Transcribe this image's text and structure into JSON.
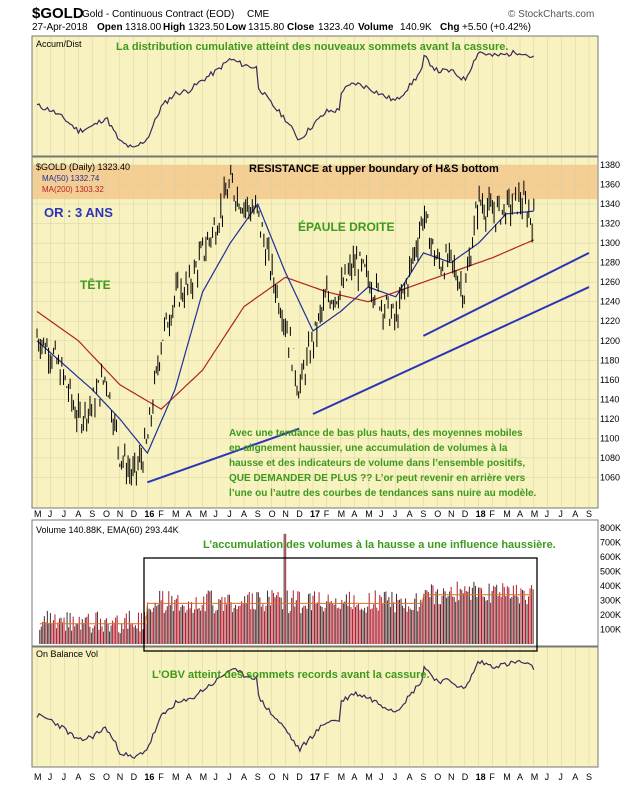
{
  "header": {
    "symbol": "$GOLD",
    "description": "Gold - Continuous Contract (EOD)",
    "exchange": "CME",
    "brand": "© StockCharts.com",
    "date": "27-Apr-2018",
    "open_label": "Open",
    "open": "1318.00",
    "high_label": "High",
    "high": "1323.50",
    "low_label": "Low",
    "low": "1315.80",
    "close_label": "Close",
    "close": "1323.40",
    "volume_label": "Volume",
    "volume": "140.9K",
    "chg_label": "Chg",
    "chg": "+5.50 (+0.42%)"
  },
  "colors": {
    "panel_bg": "#f8f2c0",
    "price": "#000000",
    "ma50": "#1f2f9c",
    "ma200": "#b02424",
    "trendline": "#2c35b8",
    "resistance": "#f4c88c",
    "annotation_green": "#3c9a1c",
    "annotation_blue": "#2c35b8",
    "volume_bar": "#b01c2a",
    "volume_bar_dark": "#4a2a2a"
  },
  "panels": {
    "accum_legend": "Accum/Dist",
    "accum_note": "La distribution cumulative atteint des nouveaux sommets avant la cassure.",
    "price_legend": "$GOLD (Daily) 1323.40",
    "ma50_legend": "MA(50) 1332.74",
    "ma200_legend": "MA(200) 1303.32",
    "resistance_note": "RESISTANCE at upper boundary of H&S bottom",
    "title_note": "OR : 3 ANS",
    "head_note": "TÊTE",
    "shoulder_note": "ÉPAULE DROITE",
    "comment_lines": [
      "Avec une tendance de bas plus hauts, des moyennes mobiles",
      "en alignement haussier, une accumulation de volumes à la",
      "hausse et des indicateurs de volume dans l’ensemble positifs,",
      "QUE DEMANDER DE PLUS ?? L’or peut revenir en arrière vers",
      "l’une ou l’autre des courbes de tendances sans nuire au modèle."
    ],
    "volume_legend": "Volume 140.88K, EMA(60) 293.44K",
    "volume_note": "L’accumulation des volumes à la hausse a une influence haussière.",
    "obv_legend": "On Balance Vol",
    "obv_note": "L’OBV atteint des sommets records avant la cassure."
  },
  "chart_data": {
    "type": "line",
    "title": "$GOLD Gold - Continuous Contract (EOD) CME",
    "xlabel": "",
    "ylabel": "",
    "x_months": [
      "M",
      "J",
      "J",
      "A",
      "S",
      "O",
      "N",
      "D",
      "16",
      "F",
      "M",
      "A",
      "M",
      "J",
      "J",
      "A",
      "S",
      "O",
      "N",
      "D",
      "17",
      "F",
      "M",
      "A",
      "M",
      "J",
      "J",
      "A",
      "S",
      "O",
      "N",
      "D",
      "18",
      "F",
      "M",
      "A",
      "M",
      "J",
      "J",
      "A",
      "S"
    ],
    "ylim": [
      1040,
      1380
    ],
    "y_ticks": [
      1060,
      1080,
      1100,
      1120,
      1140,
      1160,
      1180,
      1200,
      1220,
      1240,
      1260,
      1280,
      1300,
      1320,
      1340,
      1360,
      1380
    ],
    "series": [
      {
        "name": "$GOLD (Daily)",
        "x_month_index": [
          0,
          1,
          2,
          3,
          4,
          5,
          6,
          7,
          8,
          9,
          10,
          11,
          12,
          13,
          14,
          15,
          16,
          17,
          18,
          19,
          20,
          21,
          22,
          23,
          24,
          25,
          26,
          27,
          28,
          29,
          30,
          31,
          32,
          33,
          34,
          35,
          36
        ],
        "values": [
          1205,
          1190,
          1160,
          1120,
          1135,
          1165,
          1085,
          1060,
          1095,
          1200,
          1245,
          1255,
          1290,
          1320,
          1360,
          1340,
          1330,
          1270,
          1220,
          1150,
          1200,
          1245,
          1250,
          1280,
          1265,
          1240,
          1220,
          1270,
          1330,
          1280,
          1280,
          1250,
          1345,
          1330,
          1335,
          1345,
          1323
        ]
      },
      {
        "name": "MA(50)",
        "x_month_index": [
          0,
          2,
          4,
          6,
          8,
          10,
          12,
          14,
          16,
          18,
          20,
          22,
          24,
          26,
          28,
          30,
          32,
          34,
          36
        ],
        "values": [
          1200,
          1175,
          1150,
          1120,
          1085,
          1150,
          1250,
          1300,
          1340,
          1270,
          1210,
          1230,
          1255,
          1245,
          1290,
          1280,
          1300,
          1330,
          1332.74
        ]
      },
      {
        "name": "MA(200)",
        "x_month_index": [
          0,
          3,
          6,
          9,
          12,
          15,
          18,
          21,
          24,
          27,
          30,
          33,
          36
        ],
        "values": [
          1230,
          1200,
          1155,
          1130,
          1170,
          1235,
          1265,
          1250,
          1240,
          1255,
          1270,
          1285,
          1303.32
        ]
      }
    ],
    "trendlines": [
      {
        "from": {
          "x_month_index": 8,
          "y": 1055
        },
        "to": {
          "x_month_index": 19,
          "y": 1110
        }
      },
      {
        "from": {
          "x_month_index": 20,
          "y": 1125
        },
        "to": {
          "x_month_index": 40,
          "y": 1255
        }
      },
      {
        "from": {
          "x_month_index": 28,
          "y": 1205
        },
        "to": {
          "x_month_index": 40,
          "y": 1290
        }
      }
    ],
    "resistance_band": [
      1345,
      1380
    ],
    "volume": {
      "y_ticks": [
        "100K",
        "200K",
        "300K",
        "400K",
        "500K",
        "600K",
        "700K",
        "800K"
      ],
      "ylim": [
        0,
        800
      ]
    }
  }
}
